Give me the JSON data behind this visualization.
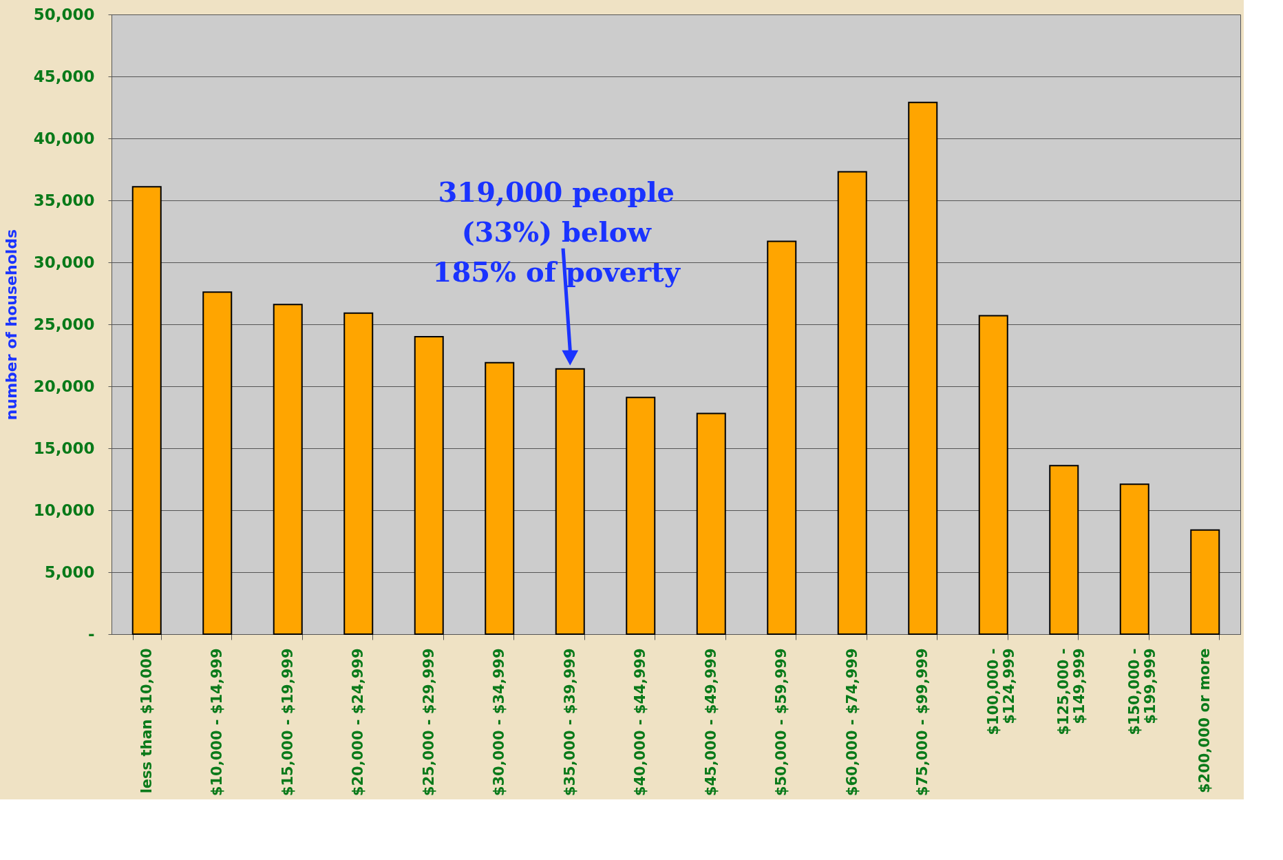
{
  "chart_data": {
    "type": "bar",
    "ylabel": "number of households",
    "categories": [
      "less than $10,000",
      "$10,000 - $14,999",
      "$15,000 - $19,999",
      "$20,000 - $24,999",
      "$25,000 - $29,999",
      "$30,000 - $34,999",
      "$35,000 - $39,999",
      "$40,000 - $44,999",
      "$45,000 - $49,999",
      "$50,000 - $59,999",
      "$60,000 - $74,999",
      "$75,000 - $99,999",
      "$100,000 -\n$124,999",
      "$125,000 -\n$149,999",
      "$150,000 -\n$199,999",
      "$200,000 or more"
    ],
    "values": [
      36100,
      27600,
      26600,
      25900,
      24000,
      21900,
      21400,
      19100,
      17800,
      31700,
      37300,
      42900,
      25700,
      13600,
      12100,
      8400
    ],
    "color": "#ffa500",
    "ylim": [
      0,
      50000
    ],
    "yticks": [
      {
        "value": 0,
        "label": "-"
      },
      {
        "value": 5000,
        "label": "5,000"
      },
      {
        "value": 10000,
        "label": "10,000"
      },
      {
        "value": 15000,
        "label": "15,000"
      },
      {
        "value": 20000,
        "label": "20,000"
      },
      {
        "value": 25000,
        "label": "25,000"
      },
      {
        "value": 30000,
        "label": "30,000"
      },
      {
        "value": 35000,
        "label": "35,000"
      },
      {
        "value": 40000,
        "label": "40,000"
      },
      {
        "value": 45000,
        "label": "45,000"
      },
      {
        "value": 50000,
        "label": "50,000"
      }
    ],
    "grid": "y",
    "annotations": [
      {
        "text": "319,000 people\n(33%) below\n185% of poverty",
        "x": "$35,000 - $39,999",
        "y": 21400
      }
    ]
  }
}
